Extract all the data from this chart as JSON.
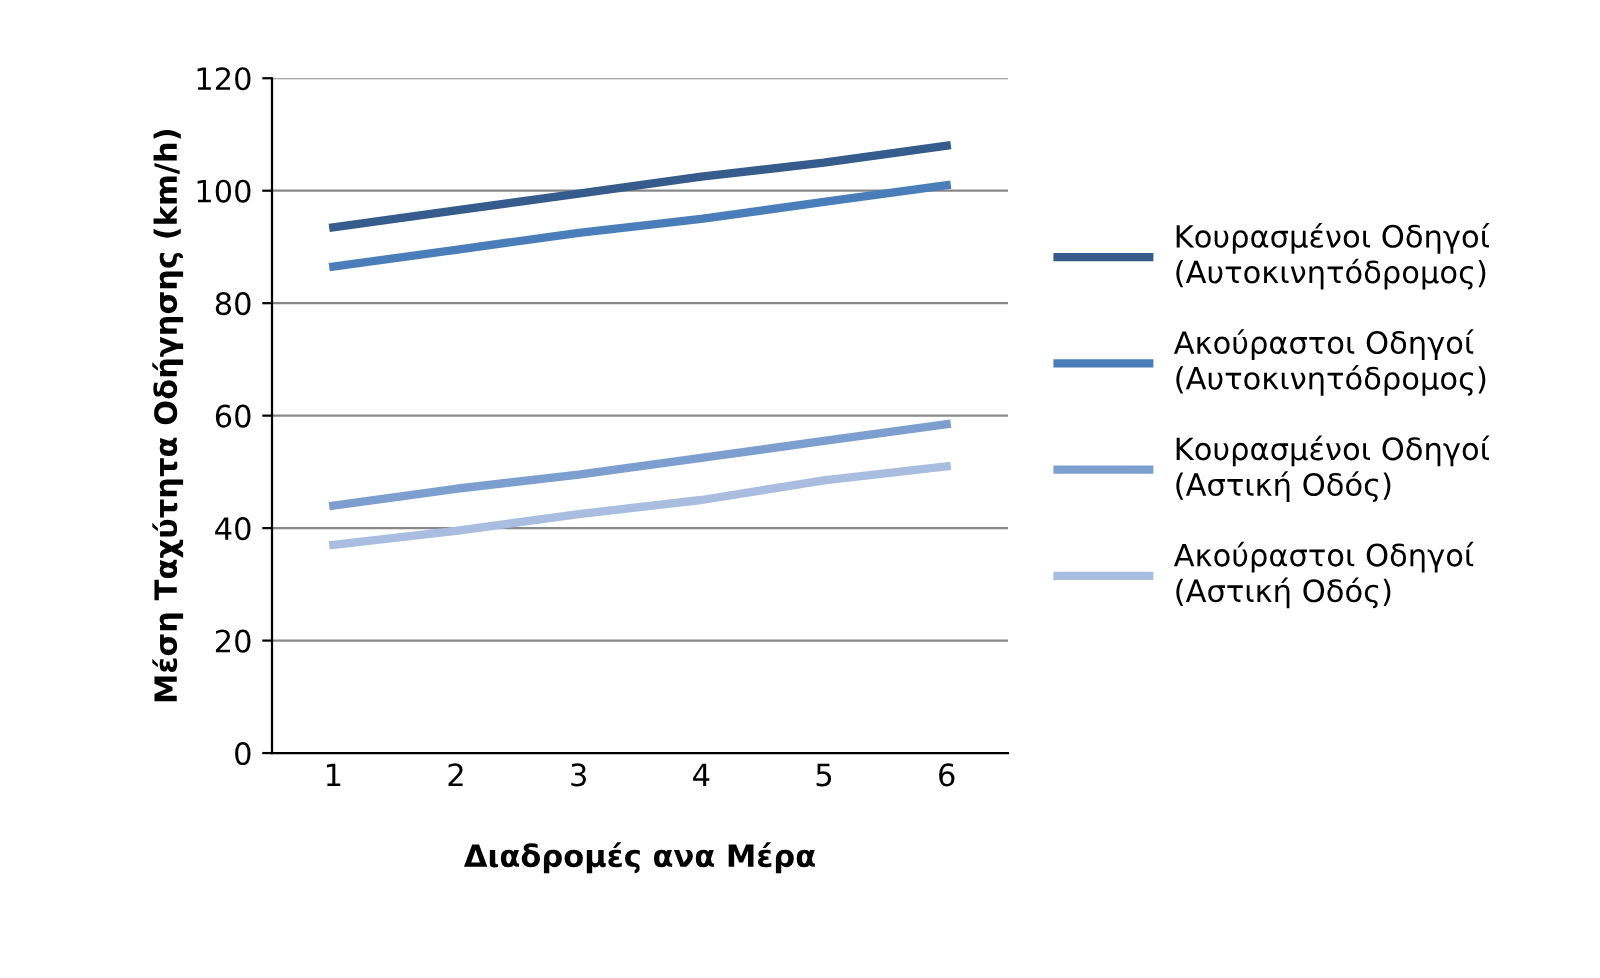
{
  "chart_data": {
    "type": "line",
    "xlabel": "Διαδρομές ανα Μέρα",
    "ylabel": "Μέση Ταχύτητα Οδήγησης (km/h)",
    "categories": [
      "1",
      "2",
      "3",
      "4",
      "5",
      "6"
    ],
    "series": [
      {
        "name": "Κουρασμένοι Οδηγοί\n(Αυτοκινητόδρομος)",
        "color": "#355c8c",
        "values": [
          93.5,
          96.5,
          99.5,
          102.5,
          105,
          108
        ]
      },
      {
        "name": "Ακούραστοι Οδηγοί\n(Αυτοκινητόδρομος)",
        "color": "#4a7ebb",
        "values": [
          86.5,
          89.5,
          92.5,
          95,
          98,
          101
        ]
      },
      {
        "name": "Κουρασμένοι Οδηγοί\n(Αστική Οδός)",
        "color": "#7d9fd0",
        "values": [
          44,
          47,
          49.5,
          52.5,
          55.5,
          58.5
        ]
      },
      {
        "name": "Ακούραστοι Οδηγοί\n(Αστική Οδός)",
        "color": "#a9bde0",
        "values": [
          37,
          39.5,
          42.5,
          45,
          48.5,
          51
        ]
      }
    ],
    "ylim": [
      0,
      120
    ],
    "yticks": [
      0,
      20,
      40,
      60,
      80,
      100,
      120
    ],
    "grid": "y",
    "legend": "right",
    "marker": "none",
    "line_style": "solid"
  }
}
